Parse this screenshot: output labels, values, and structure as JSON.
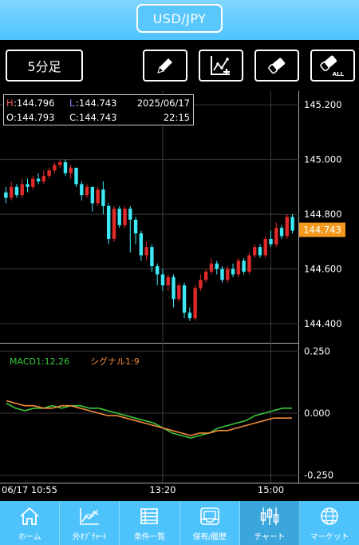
{
  "header": {
    "pair": "USD/JPY"
  },
  "toolbar": {
    "timeframe": "5分足",
    "tools": [
      {
        "name": "pencil-icon"
      },
      {
        "name": "add-indicator-icon"
      },
      {
        "name": "eraser-icon"
      },
      {
        "name": "eraser-all-icon",
        "text": "ALL"
      }
    ]
  },
  "ohlc": {
    "h_label": "H",
    "h_value": ":144.796",
    "l_label": "L",
    "l_value": ":144.743",
    "o_label": "O",
    "o_value": ":144.793",
    "c_label": "C",
    "c_value": ":144.743",
    "date": "2025/06/17",
    "time": "22:15"
  },
  "colors": {
    "up": "#e02a2a",
    "down": "#3ee8f5",
    "grid": "#3a3a3a",
    "macd": "#3cc83c",
    "signal": "#f08a3c",
    "price_tag": "#f39a1e",
    "nav": "#4ec3fb"
  },
  "chart_data": [
    {
      "type": "candlestick",
      "y_ticks": [
        "145.200",
        "145.000",
        "144.800",
        "144.600",
        "144.400"
      ],
      "ylim": [
        144.33,
        145.25
      ],
      "x_ticks": [
        {
          "label": "06/17 10:55",
          "index": 0
        },
        {
          "label": "13:20",
          "index": 29
        },
        {
          "label": "15:00",
          "index": 49
        }
      ],
      "last_price": "144.743",
      "candles": [
        [
          144.88,
          144.86,
          144.9,
          144.84
        ],
        [
          144.86,
          144.9,
          144.92,
          144.85
        ],
        [
          144.9,
          144.87,
          144.91,
          144.86
        ],
        [
          144.87,
          144.91,
          144.93,
          144.86
        ],
        [
          144.91,
          144.9,
          144.93,
          144.88
        ],
        [
          144.9,
          144.93,
          144.94,
          144.89
        ],
        [
          144.93,
          144.92,
          144.95,
          144.91
        ],
        [
          144.92,
          144.94,
          144.96,
          144.91
        ],
        [
          144.94,
          144.96,
          144.97,
          144.93
        ],
        [
          144.96,
          144.98,
          144.99,
          144.95
        ],
        [
          144.98,
          144.99,
          145.0,
          144.97
        ],
        [
          144.99,
          144.95,
          145.0,
          144.94
        ],
        [
          144.95,
          144.97,
          144.98,
          144.93
        ],
        [
          144.97,
          144.91,
          144.97,
          144.9
        ],
        [
          144.91,
          144.87,
          144.92,
          144.85
        ],
        [
          144.87,
          144.9,
          144.91,
          144.86
        ],
        [
          144.9,
          144.84,
          144.9,
          144.81
        ],
        [
          144.84,
          144.89,
          144.9,
          144.83
        ],
        [
          144.89,
          144.83,
          144.92,
          144.8
        ],
        [
          144.83,
          144.71,
          144.84,
          144.69
        ],
        [
          144.71,
          144.82,
          144.83,
          144.7
        ],
        [
          144.82,
          144.76,
          144.83,
          144.75
        ],
        [
          144.76,
          144.82,
          144.83,
          144.75
        ],
        [
          144.82,
          144.78,
          144.83,
          144.66
        ],
        [
          144.78,
          144.73,
          144.79,
          144.69
        ],
        [
          144.73,
          144.65,
          144.74,
          144.63
        ],
        [
          144.65,
          144.68,
          144.7,
          144.63
        ],
        [
          144.68,
          144.61,
          144.69,
          144.59
        ],
        [
          144.61,
          144.58,
          144.62,
          144.54
        ],
        [
          144.58,
          144.54,
          144.6,
          144.52
        ],
        [
          144.54,
          144.57,
          144.58,
          144.52
        ],
        [
          144.57,
          144.49,
          144.58,
          144.46
        ],
        [
          144.49,
          144.54,
          144.55,
          144.48
        ],
        [
          144.54,
          144.44,
          144.55,
          144.42
        ],
        [
          144.44,
          144.42,
          144.46,
          144.41
        ],
        [
          144.42,
          144.53,
          144.54,
          144.41
        ],
        [
          144.53,
          144.56,
          144.58,
          144.52
        ],
        [
          144.56,
          144.59,
          144.6,
          144.55
        ],
        [
          144.59,
          144.62,
          144.64,
          144.58
        ],
        [
          144.62,
          144.6,
          144.63,
          144.58
        ],
        [
          144.6,
          144.56,
          144.61,
          144.55
        ],
        [
          144.56,
          144.6,
          144.61,
          144.55
        ],
        [
          144.6,
          144.58,
          144.62,
          144.57
        ],
        [
          144.58,
          144.63,
          144.64,
          144.57
        ],
        [
          144.63,
          144.59,
          144.64,
          144.58
        ],
        [
          144.59,
          144.65,
          144.66,
          144.58
        ],
        [
          144.65,
          144.68,
          144.69,
          144.64
        ],
        [
          144.68,
          144.65,
          144.69,
          144.64
        ],
        [
          144.65,
          144.71,
          144.72,
          144.64
        ],
        [
          144.71,
          144.69,
          144.74,
          144.68
        ],
        [
          144.69,
          144.75,
          144.77,
          144.68
        ],
        [
          144.75,
          144.72,
          144.76,
          144.71
        ],
        [
          144.72,
          144.79,
          144.8,
          144.71
        ],
        [
          144.79,
          144.74,
          144.8,
          144.73
        ]
      ]
    },
    {
      "type": "line",
      "y_ticks": [
        "0.250",
        "0.000",
        "-0.250"
      ],
      "ylim": [
        -0.28,
        0.28
      ],
      "series": [
        {
          "name": "MACD1:12,26",
          "values": [
            0.04,
            0.02,
            0.01,
            0.02,
            0.02,
            0.03,
            0.02,
            0.03,
            0.03,
            0.02,
            0.02,
            0.01,
            0.0,
            -0.01,
            -0.02,
            -0.03,
            -0.04,
            -0.06,
            -0.08,
            -0.09,
            -0.1,
            -0.09,
            -0.08,
            -0.06,
            -0.05,
            -0.04,
            -0.03,
            -0.01,
            0.0,
            0.01,
            0.02,
            0.02
          ]
        },
        {
          "name": "シグナル1:9",
          "values": [
            0.05,
            0.04,
            0.03,
            0.03,
            0.02,
            0.02,
            0.03,
            0.03,
            0.02,
            0.01,
            0.0,
            -0.01,
            -0.01,
            -0.02,
            -0.03,
            -0.04,
            -0.05,
            -0.06,
            -0.07,
            -0.08,
            -0.09,
            -0.08,
            -0.08,
            -0.07,
            -0.07,
            -0.06,
            -0.05,
            -0.04,
            -0.03,
            -0.02,
            -0.02,
            -0.02
          ]
        }
      ]
    }
  ],
  "nav": [
    {
      "label": "ホーム",
      "icon": "home-icon"
    },
    {
      "label": "外ｵﾌﾟﾁｬｰﾄ",
      "icon": "outside-chart-icon"
    },
    {
      "label": "条件一覧",
      "icon": "list-icon"
    },
    {
      "label": "保有/履歴",
      "icon": "tray-icon"
    },
    {
      "label": "チャート",
      "icon": "candle-chart-icon"
    },
    {
      "label": "マーケット",
      "icon": "globe-icon"
    }
  ]
}
